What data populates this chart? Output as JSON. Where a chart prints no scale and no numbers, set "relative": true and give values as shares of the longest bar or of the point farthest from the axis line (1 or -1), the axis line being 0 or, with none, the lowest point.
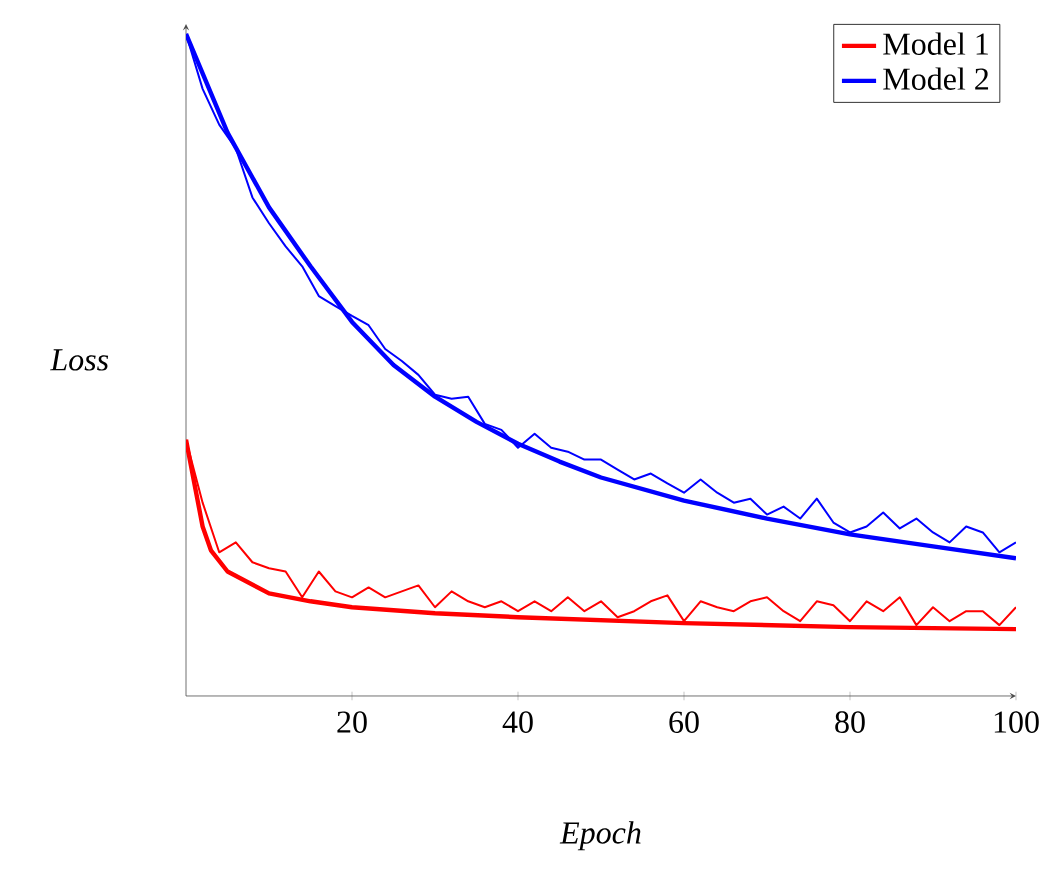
{
  "chart_data": {
    "type": "line",
    "relative": true,
    "xlabel": "Epoch",
    "ylabel": "Loss",
    "xlim": [
      0,
      100
    ],
    "xticks": [
      20,
      40,
      60,
      80,
      100
    ],
    "legend": "top right",
    "grid": false,
    "marker": "none",
    "line_style": "solid",
    "tick_labels": "x",
    "series": [
      {
        "name": "Model 1",
        "color": "#ff0000",
        "x": [
          0,
          2,
          3,
          5,
          10,
          15,
          20,
          30,
          40,
          60,
          80,
          100
        ],
        "values": [
          0.387,
          0.256,
          0.22,
          0.188,
          0.155,
          0.143,
          0.134,
          0.125,
          0.119,
          0.11,
          0.104,
          0.101
        ]
      },
      {
        "name": "Model 2",
        "color": "#0000ff",
        "x": [
          0,
          5,
          10,
          15,
          20,
          25,
          30,
          35,
          40,
          45,
          50,
          60,
          70,
          80,
          90,
          100
        ],
        "values": [
          1.0,
          0.851,
          0.738,
          0.649,
          0.565,
          0.5,
          0.452,
          0.414,
          0.381,
          0.354,
          0.33,
          0.295,
          0.268,
          0.244,
          0.226,
          0.208
        ]
      },
      {
        "color": "#ff0000",
        "x": [
          0,
          2,
          4,
          6,
          8,
          10,
          12,
          14,
          16,
          18,
          20,
          22,
          24,
          26,
          28,
          30,
          32,
          34,
          36,
          38,
          40,
          42,
          44,
          46,
          48,
          50,
          52,
          54,
          56,
          58,
          60,
          62,
          64,
          66,
          68,
          70,
          72,
          74,
          76,
          78,
          80,
          82,
          84,
          86,
          88,
          90,
          92,
          94,
          96,
          98,
          100
        ],
        "values": [
          0.387,
          0.292,
          0.217,
          0.232,
          0.202,
          0.193,
          0.188,
          0.149,
          0.188,
          0.158,
          0.149,
          0.164,
          0.149,
          0.158,
          0.167,
          0.134,
          0.158,
          0.143,
          0.134,
          0.143,
          0.128,
          0.143,
          0.128,
          0.149,
          0.128,
          0.143,
          0.119,
          0.128,
          0.143,
          0.152,
          0.113,
          0.143,
          0.134,
          0.128,
          0.143,
          0.149,
          0.128,
          0.113,
          0.143,
          0.137,
          0.113,
          0.143,
          0.128,
          0.149,
          0.107,
          0.134,
          0.113,
          0.128,
          0.128,
          0.107,
          0.134
        ]
      },
      {
        "color": "#0000ff",
        "x": [
          0,
          2,
          4,
          6,
          8,
          10,
          12,
          14,
          16,
          18,
          20,
          22,
          24,
          26,
          28,
          30,
          32,
          34,
          36,
          38,
          40,
          42,
          44,
          46,
          48,
          50,
          52,
          54,
          56,
          58,
          60,
          62,
          64,
          66,
          68,
          70,
          72,
          74,
          76,
          78,
          80,
          82,
          84,
          86,
          88,
          90,
          92,
          94,
          96,
          98,
          100
        ],
        "values": [
          1.0,
          0.917,
          0.863,
          0.827,
          0.753,
          0.714,
          0.679,
          0.649,
          0.604,
          0.589,
          0.574,
          0.56,
          0.524,
          0.506,
          0.485,
          0.455,
          0.449,
          0.452,
          0.411,
          0.402,
          0.375,
          0.396,
          0.375,
          0.369,
          0.357,
          0.357,
          0.342,
          0.327,
          0.336,
          0.321,
          0.307,
          0.327,
          0.307,
          0.292,
          0.298,
          0.274,
          0.286,
          0.268,
          0.298,
          0.262,
          0.247,
          0.256,
          0.277,
          0.253,
          0.268,
          0.247,
          0.232,
          0.256,
          0.247,
          0.217,
          0.232
        ]
      }
    ]
  }
}
